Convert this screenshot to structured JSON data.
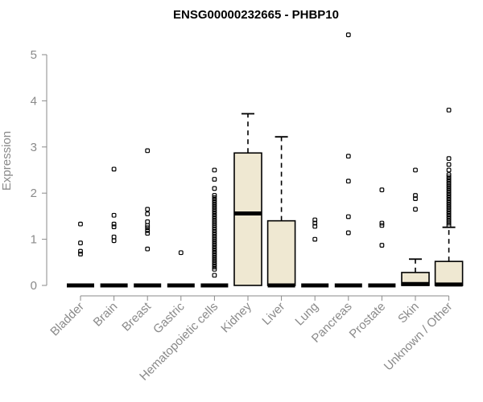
{
  "chart_data": {
    "type": "box",
    "title": "ENSG00000232665 - PHBP10",
    "ylabel": "Expression",
    "xlabel": "",
    "ylim": [
      0,
      5.4
    ],
    "yticks": [
      0,
      1,
      2,
      3,
      4,
      5
    ],
    "grid": false,
    "box_fill": "#efe8d2",
    "categories": [
      "Bladder",
      "Brain",
      "Breast",
      "Gastric",
      "Hematopoietic cells",
      "Kidney",
      "Liver",
      "Lung",
      "Pancreas",
      "Prostate",
      "Skin",
      "Unknown / Other"
    ],
    "boxes": [
      {
        "category": "Bladder",
        "min": 0,
        "q1": 0,
        "median": 0,
        "q3": 0,
        "max": 0,
        "outliers": [
          0.68,
          0.74,
          0.92,
          1.33
        ]
      },
      {
        "category": "Brain",
        "min": 0,
        "q1": 0,
        "median": 0,
        "q3": 0,
        "max": 0,
        "outliers": [
          0.97,
          1.05,
          1.27,
          1.33,
          1.52,
          2.52
        ]
      },
      {
        "category": "Breast",
        "min": 0,
        "q1": 0,
        "median": 0,
        "q3": 0,
        "max": 0,
        "outliers": [
          0.79,
          1.13,
          1.19,
          1.25,
          1.3,
          1.38,
          1.55,
          1.65,
          2.92
        ]
      },
      {
        "category": "Gastric",
        "min": 0,
        "q1": 0,
        "median": 0,
        "q3": 0,
        "max": 0,
        "outliers": [
          0.71
        ]
      },
      {
        "category": "Hematopoietic cells",
        "min": 0,
        "q1": 0,
        "median": 0,
        "q3": 0,
        "max": 0,
        "outliers": [
          0.22,
          0.35,
          0.4,
          0.45,
          0.5,
          0.55,
          0.6,
          0.65,
          0.7,
          0.75,
          0.8,
          0.85,
          0.9,
          0.95,
          1.0,
          1.05,
          1.1,
          1.15,
          1.2,
          1.25,
          1.3,
          1.35,
          1.4,
          1.45,
          1.5,
          1.55,
          1.6,
          1.65,
          1.7,
          1.75,
          1.8,
          1.85,
          1.9,
          1.95,
          2.1,
          2.3,
          2.5
        ]
      },
      {
        "category": "Kidney",
        "min": 0,
        "q1": 0,
        "median": 1.56,
        "q3": 2.87,
        "max": 3.72,
        "outliers": []
      },
      {
        "category": "Liver",
        "min": 0,
        "q1": 0,
        "median": 0,
        "q3": 1.4,
        "max": 3.22,
        "outliers": []
      },
      {
        "category": "Lung",
        "min": 0,
        "q1": 0,
        "median": 0,
        "q3": 0,
        "max": 0,
        "outliers": [
          1.0,
          1.28,
          1.35,
          1.42
        ]
      },
      {
        "category": "Pancreas",
        "min": 0,
        "q1": 0,
        "median": 0,
        "q3": 0,
        "max": 0,
        "outliers": [
          1.14,
          1.49,
          2.26,
          2.8,
          5.43
        ]
      },
      {
        "category": "Prostate",
        "min": 0,
        "q1": 0,
        "median": 0,
        "q3": 0,
        "max": 0,
        "outliers": [
          0.87,
          1.3,
          1.35,
          2.07
        ]
      },
      {
        "category": "Skin",
        "min": 0,
        "q1": 0,
        "median": 0.03,
        "q3": 0.28,
        "max": 0.57,
        "outliers": [
          1.65,
          1.88,
          1.95,
          2.5
        ]
      },
      {
        "category": "Unknown / Other",
        "min": 0,
        "q1": 0,
        "median": 0.02,
        "q3": 0.52,
        "max": 1.26,
        "outliers": [
          1.3,
          1.35,
          1.4,
          1.45,
          1.5,
          1.55,
          1.6,
          1.65,
          1.7,
          1.75,
          1.8,
          1.85,
          1.9,
          1.95,
          2.0,
          2.05,
          2.1,
          2.15,
          2.2,
          2.25,
          2.3,
          2.35,
          2.4,
          2.5,
          2.62,
          2.75,
          3.8
        ]
      }
    ]
  }
}
